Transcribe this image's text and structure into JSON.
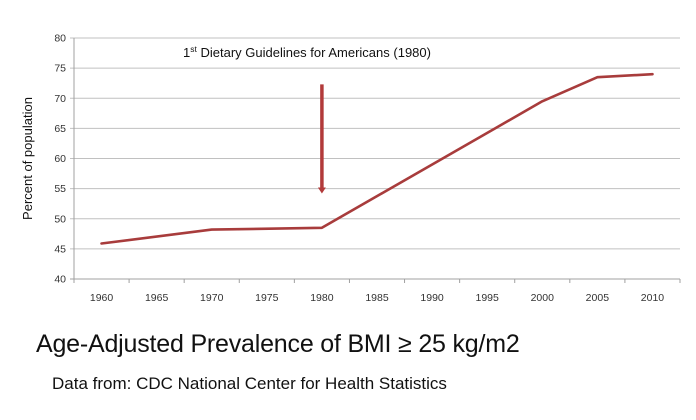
{
  "chart_data": {
    "type": "line",
    "title": "Age-Adjusted Prevalence of BMI ≥ 25 kg/m2",
    "subtitle": "Data from:  CDC National Center for Health Statistics",
    "xlabel": "",
    "ylabel": "Percent of population",
    "categories": [
      "1960",
      "1965",
      "1970",
      "1975",
      "1980",
      "1985",
      "1990",
      "1995",
      "2000",
      "2005",
      "2010"
    ],
    "yticks": [
      "40",
      "45",
      "50",
      "55",
      "60",
      "65",
      "70",
      "75",
      "80"
    ],
    "ylim": [
      40,
      80
    ],
    "grid": true,
    "legend": "none",
    "series": [
      {
        "name": "Age-adjusted prevalence of BMI ≥ 25",
        "color": "#a83c3c",
        "points": [
          {
            "x": "1960",
            "y": 45.9
          },
          {
            "x": "1970",
            "y": 48.2
          },
          {
            "x": "1980",
            "y": 48.5
          },
          {
            "x": "2000",
            "y": 69.5
          },
          {
            "x": "2005",
            "y": 73.5
          },
          {
            "x": "2010",
            "y": 74.0
          }
        ]
      }
    ],
    "annotations": [
      {
        "text_main": "1",
        "text_sup": "st",
        "text_rest": " Dietary Guidelines for Americans (1980)",
        "arrow_at": "1980",
        "arrow_from_y": 72.3,
        "arrow_to_y": 54.2,
        "color": "#b23a3a"
      }
    ]
  },
  "colors": {
    "line": "#a83c3c",
    "arrow": "#b23a3a",
    "grid": "#c0c0c0",
    "axis": "#a0a0a0"
  }
}
